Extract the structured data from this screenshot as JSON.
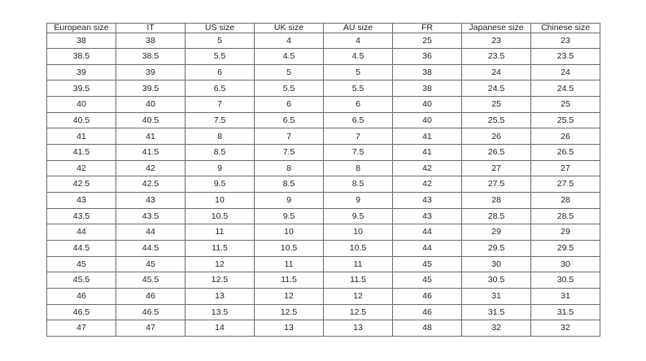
{
  "page": {
    "background": "#ffffff"
  },
  "colors": {
    "table_border": "#6a6a6a",
    "text": "#222222"
  },
  "chart_data": {
    "type": "table",
    "title": "",
    "grid": true,
    "columns": [
      "European size",
      "IT",
      "US size",
      "UK size",
      "AU size",
      "FR",
      "Japanese size",
      "Chinese size"
    ],
    "rows": [
      [
        "38",
        "38",
        "5",
        "4",
        "4",
        "25",
        "23",
        "23"
      ],
      [
        "38.5",
        "38.5",
        "5.5",
        "4.5",
        "4.5",
        "36",
        "23.5",
        "23.5"
      ],
      [
        "39",
        "39",
        "6",
        "5",
        "5",
        "38",
        "24",
        "24"
      ],
      [
        "39.5",
        "39.5",
        "6.5",
        "5.5",
        "5.5",
        "38",
        "24.5",
        "24.5"
      ],
      [
        "40",
        "40",
        "7",
        "6",
        "6",
        "40",
        "25",
        "25"
      ],
      [
        "40.5",
        "40.5",
        "7.5",
        "6.5",
        "6.5",
        "40",
        "25.5",
        "25.5"
      ],
      [
        "41",
        "41",
        "8",
        "7",
        "7",
        "41",
        "26",
        "26"
      ],
      [
        "41.5",
        "41.5",
        "8.5",
        "7.5",
        "7.5",
        "41",
        "26.5",
        "26.5"
      ],
      [
        "42",
        "42",
        "9",
        "8",
        "8",
        "42",
        "27",
        "27"
      ],
      [
        "42.5",
        "42.5",
        "9.5",
        "8.5",
        "8.5",
        "42",
        "27.5",
        "27.5"
      ],
      [
        "43",
        "43",
        "10",
        "9",
        "9",
        "43",
        "28",
        "28"
      ],
      [
        "43.5",
        "43.5",
        "10.5",
        "9.5",
        "9.5",
        "43",
        "28.5",
        "28.5"
      ],
      [
        "44",
        "44",
        "11",
        "10",
        "10",
        "44",
        "29",
        "29"
      ],
      [
        "44.5",
        "44.5",
        "11.5",
        "10.5",
        "10.5",
        "44",
        "29.5",
        "29.5"
      ],
      [
        "45",
        "45",
        "12",
        "11",
        "11",
        "45",
        "30",
        "30"
      ],
      [
        "45.5",
        "45.5",
        "12.5",
        "11.5",
        "11.5",
        "45",
        "30.5",
        "30.5"
      ],
      [
        "46",
        "46",
        "13",
        "12",
        "12",
        "46",
        "31",
        "31"
      ],
      [
        "46.5",
        "46.5",
        "13.5",
        "12.5",
        "12.5",
        "46",
        "31.5",
        "31.5"
      ],
      [
        "47",
        "47",
        "14",
        "13",
        "13",
        "48",
        "32",
        "32"
      ]
    ]
  }
}
